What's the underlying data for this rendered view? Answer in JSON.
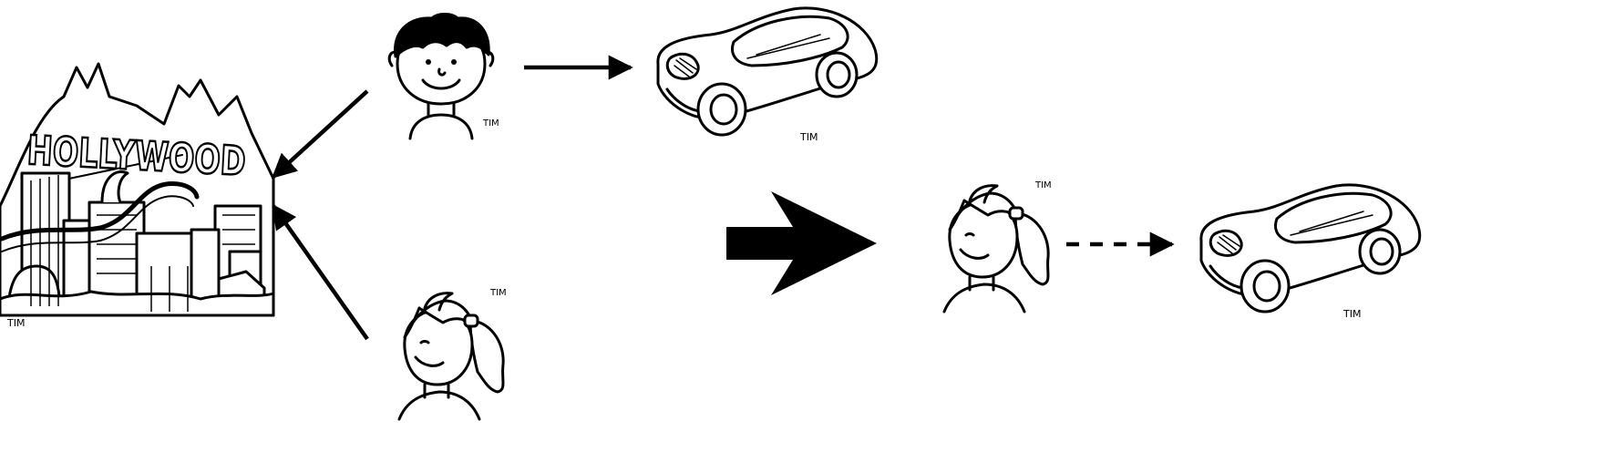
{
  "colors": {
    "ink": "#000000",
    "paper": "#ffffff"
  },
  "sign_text": "HOLLYWOOD",
  "artist_tag": "TIM",
  "figures": [
    {
      "name": "hollywood-city-illustration"
    },
    {
      "name": "boy-illustration"
    },
    {
      "name": "girl-illustration"
    },
    {
      "name": "sports-car-illustration"
    }
  ],
  "edges": [
    {
      "from": "boy",
      "to": "hollywood",
      "style": "solid"
    },
    {
      "from": "girl",
      "to": "hollywood",
      "style": "solid"
    },
    {
      "from": "boy",
      "to": "car",
      "style": "solid"
    },
    {
      "from": "girl",
      "to": "car",
      "style": "dashed"
    }
  ],
  "transition_arrow": "big-block-arrow"
}
